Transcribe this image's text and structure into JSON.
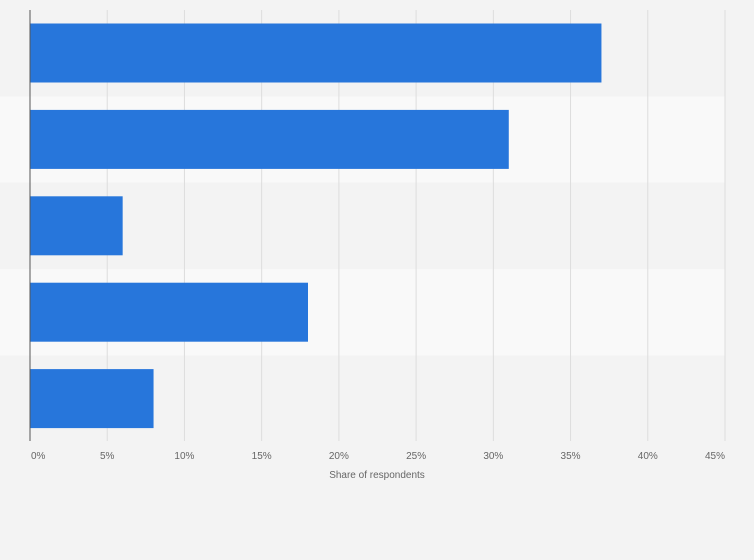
{
  "chart_data": {
    "type": "bar",
    "orientation": "horizontal",
    "categories": [
      "",
      "",
      "",
      "",
      ""
    ],
    "values": [
      37,
      31,
      6,
      18,
      8
    ],
    "xlabel": "Share of respondents",
    "ylabel": "",
    "xlim": [
      0,
      45
    ],
    "xticks": [
      "0%",
      "5%",
      "10%",
      "15%",
      "20%",
      "25%",
      "30%",
      "35%",
      "40%",
      "45%"
    ],
    "grid": true,
    "colors": {
      "bar": "#2776db",
      "band_light": "#f9f9f9",
      "band_dark": "#f3f3f3",
      "grid": "#dddddd",
      "axis": "#555555"
    }
  }
}
